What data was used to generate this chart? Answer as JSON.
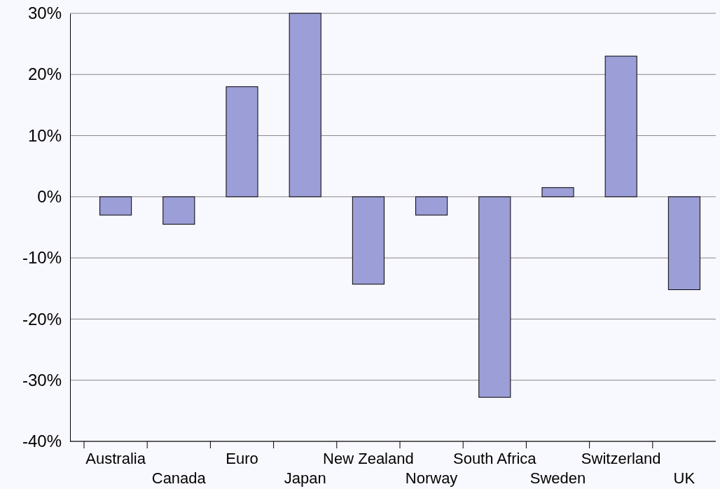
{
  "chart_data": {
    "type": "bar",
    "categories": [
      "Australia",
      "Canada",
      "Euro",
      "Japan",
      "New Zealand",
      "Norway",
      "South Africa",
      "Sweden",
      "Switzerland",
      "UK"
    ],
    "values": [
      -3.0,
      -4.5,
      18.0,
      30.0,
      -14.3,
      -3.0,
      -32.8,
      1.5,
      23.0,
      -15.2
    ],
    "color": "#9c9ed8",
    "ylim": [
      -40,
      30
    ],
    "yticks": [
      {
        "value": -40,
        "label": "-40%"
      },
      {
        "value": -30,
        "label": "-30%"
      },
      {
        "value": -20,
        "label": "-20%"
      },
      {
        "value": -10,
        "label": "-10%"
      },
      {
        "value": 0,
        "label": "0%"
      },
      {
        "value": 10,
        "label": "10%"
      },
      {
        "value": 20,
        "label": "20%"
      },
      {
        "value": 30,
        "label": "30%"
      }
    ],
    "grid": "y"
  }
}
